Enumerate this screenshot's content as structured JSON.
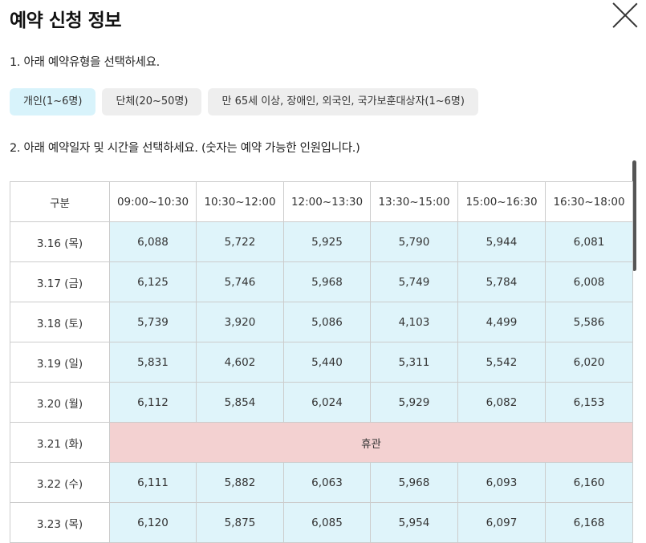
{
  "modal": {
    "title": "예약 신청 정보",
    "close_icon": "close-icon"
  },
  "step1": {
    "text": "1. 아래 예약유형을 선택하세요.",
    "types": [
      {
        "label": "개인(1~6명)",
        "selected": true
      },
      {
        "label": "단체(20~50명)",
        "selected": false
      },
      {
        "label": "만 65세 이상, 장애인, 외국인, 국가보훈대상자(1~6명)",
        "selected": false
      }
    ]
  },
  "step2": {
    "text": "2. 아래 예약일자 및 시간을 선택하세요. (숫자는 예약 가능한 인원입니다.)"
  },
  "table": {
    "headers": [
      "구분",
      "09:00~10:30",
      "10:30~12:00",
      "12:00~13:30",
      "13:30~15:00",
      "15:00~16:30",
      "16:30~18:00"
    ],
    "rows": [
      {
        "date": "3.16 (목)",
        "values": [
          "6,088",
          "5,722",
          "5,925",
          "5,790",
          "5,944",
          "6,081"
        ]
      },
      {
        "date": "3.17 (금)",
        "values": [
          "6,125",
          "5,746",
          "5,968",
          "5,749",
          "5,784",
          "6,008"
        ]
      },
      {
        "date": "3.18 (토)",
        "values": [
          "5,739",
          "3,920",
          "5,086",
          "4,103",
          "4,499",
          "5,586"
        ]
      },
      {
        "date": "3.19 (일)",
        "values": [
          "5,831",
          "4,602",
          "5,440",
          "5,311",
          "5,542",
          "6,020"
        ]
      },
      {
        "date": "3.20 (월)",
        "values": [
          "6,112",
          "5,854",
          "6,024",
          "5,929",
          "6,082",
          "6,153"
        ]
      },
      {
        "date": "3.21 (화)",
        "closed": "휴관"
      },
      {
        "date": "3.22 (수)",
        "values": [
          "6,111",
          "5,882",
          "6,063",
          "5,968",
          "6,093",
          "6,160"
        ]
      },
      {
        "date": "3.23 (목)",
        "values": [
          "6,120",
          "5,875",
          "6,085",
          "5,954",
          "6,097",
          "6,168"
        ]
      }
    ]
  },
  "colors": {
    "available": "#dff4fa",
    "closed": "#f3d1d1",
    "type_selected": "#d8f3fb",
    "type_default": "#eeeeee"
  }
}
